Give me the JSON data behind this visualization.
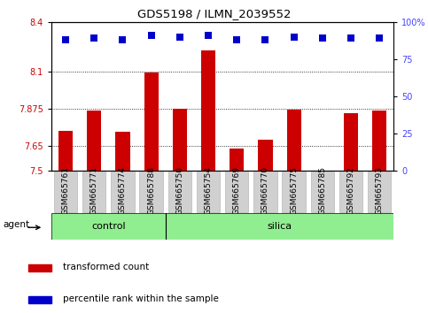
{
  "title": "GDS5198 / ILMN_2039552",
  "samples": [
    "GSM665761",
    "GSM665771",
    "GSM665774",
    "GSM665788",
    "GSM665750",
    "GSM665754",
    "GSM665769",
    "GSM665770",
    "GSM665775",
    "GSM665785",
    "GSM665792",
    "GSM665793"
  ],
  "bar_values": [
    7.74,
    7.865,
    7.735,
    8.095,
    7.875,
    8.23,
    7.635,
    7.685,
    7.87,
    7.5,
    7.845,
    7.865
  ],
  "percentile_values": [
    88,
    89,
    88,
    91,
    90,
    91,
    88,
    88,
    90,
    89,
    89,
    89
  ],
  "bar_color": "#cc0000",
  "dot_color": "#0000cc",
  "ylim_left": [
    7.5,
    8.4
  ],
  "ylim_right": [
    0,
    100
  ],
  "yticks_left": [
    7.5,
    7.65,
    7.875,
    8.1,
    8.4
  ],
  "yticks_right": [
    0,
    25,
    50,
    75,
    100
  ],
  "ytick_labels_left": [
    "7.5",
    "7.65",
    "7.875",
    "8.1",
    "8.4"
  ],
  "ytick_labels_right": [
    "0",
    "25",
    "50",
    "75",
    "100%"
  ],
  "hlines": [
    8.1,
    7.875,
    7.65
  ],
  "control_samples": 4,
  "control_label": "control",
  "silica_label": "silica",
  "agent_label": "agent",
  "legend_bar_label": "transformed count",
  "legend_dot_label": "percentile rank within the sample",
  "control_color": "#90ee90",
  "bar_color_hex": "#cc0000",
  "dot_color_hex": "#0000cc",
  "bar_width": 0.5,
  "dot_size": 40,
  "label_bg_color": "#d0d0d0",
  "label_border_color": "#aaaaaa"
}
